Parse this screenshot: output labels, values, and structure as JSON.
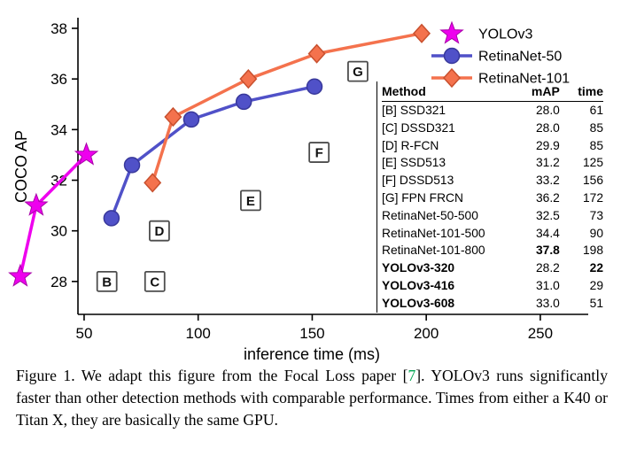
{
  "figure": {
    "caption": {
      "before_ref": "Figure 1. We adapt this figure from the Focal Loss paper [",
      "ref": "7",
      "after_ref": "]. YOLOv3 runs significantly faster than other detection methods with comparable performance. Times from either a K40 or Titan X, they are basically the same GPU.",
      "ref_color": "#00A551"
    }
  },
  "chart_data": {
    "type": "line",
    "title": "",
    "xlabel": "inference time (ms)",
    "ylabel": "COCO AP",
    "xlim": [
      47.3,
      267.9
    ],
    "ylim": [
      26.7,
      38.42
    ],
    "xticks": [
      50,
      100,
      150,
      200,
      250
    ],
    "yticks": [
      28,
      30,
      32,
      34,
      36,
      38
    ],
    "grid": false,
    "legend_position": "top-right",
    "series": [
      {
        "name": "YOLOv3",
        "marker": "star",
        "color": "#EE00EE",
        "edge": "#A800A8",
        "points": [
          [
            22,
            28.2
          ],
          [
            29,
            31.0
          ],
          [
            51,
            33.0
          ]
        ]
      },
      {
        "name": "RetinaNet-50",
        "marker": "circle",
        "color": "#5051C8",
        "edge": "#38389B",
        "points": [
          [
            62,
            30.5
          ],
          [
            71,
            32.6
          ],
          [
            97,
            34.4
          ],
          [
            120,
            35.1
          ],
          [
            151,
            35.7
          ]
        ]
      },
      {
        "name": "RetinaNet-101",
        "marker": "diamond",
        "color": "#F4724D",
        "edge": "#C8502E",
        "points": [
          [
            80,
            31.9
          ],
          [
            89,
            34.5
          ],
          [
            122,
            36.0
          ],
          [
            152,
            37.0
          ],
          [
            198,
            37.8
          ]
        ]
      }
    ],
    "annotations": [
      {
        "label": "B",
        "x": 60,
        "y": 28.0
      },
      {
        "label": "C",
        "x": 81,
        "y": 28.0
      },
      {
        "label": "D",
        "x": 83,
        "y": 30.0
      },
      {
        "label": "E",
        "x": 123,
        "y": 31.2
      },
      {
        "label": "F",
        "x": 153,
        "y": 33.1
      },
      {
        "label": "G",
        "x": 170,
        "y": 36.3
      }
    ],
    "inset_table": {
      "headers": [
        "Method",
        "mAP",
        "time"
      ],
      "rows": [
        {
          "method": "[B] SSD321",
          "map": "28.0",
          "time": "61",
          "bold": []
        },
        {
          "method": "[C] DSSD321",
          "map": "28.0",
          "time": "85",
          "bold": []
        },
        {
          "method": "[D] R-FCN",
          "map": "29.9",
          "time": "85",
          "bold": []
        },
        {
          "method": "[E] SSD513",
          "map": "31.2",
          "time": "125",
          "bold": []
        },
        {
          "method": "[F] DSSD513",
          "map": "33.2",
          "time": "156",
          "bold": []
        },
        {
          "method": "[G] FPN FRCN",
          "map": "36.2",
          "time": "172",
          "bold": []
        },
        {
          "method": "RetinaNet-50-500",
          "map": "32.5",
          "time": "73",
          "bold": []
        },
        {
          "method": "RetinaNet-101-500",
          "map": "34.4",
          "time": "90",
          "bold": []
        },
        {
          "method": "RetinaNet-101-800",
          "map": "37.8",
          "time": "198",
          "bold": [
            "map"
          ]
        },
        {
          "method": "YOLOv3-320",
          "map": "28.2",
          "time": "22",
          "bold": [
            "method",
            "time"
          ]
        },
        {
          "method": "YOLOv3-416",
          "map": "31.0",
          "time": "29",
          "bold": [
            "method"
          ]
        },
        {
          "method": "YOLOv3-608",
          "map": "33.0",
          "time": "51",
          "bold": [
            "method"
          ]
        }
      ]
    }
  }
}
